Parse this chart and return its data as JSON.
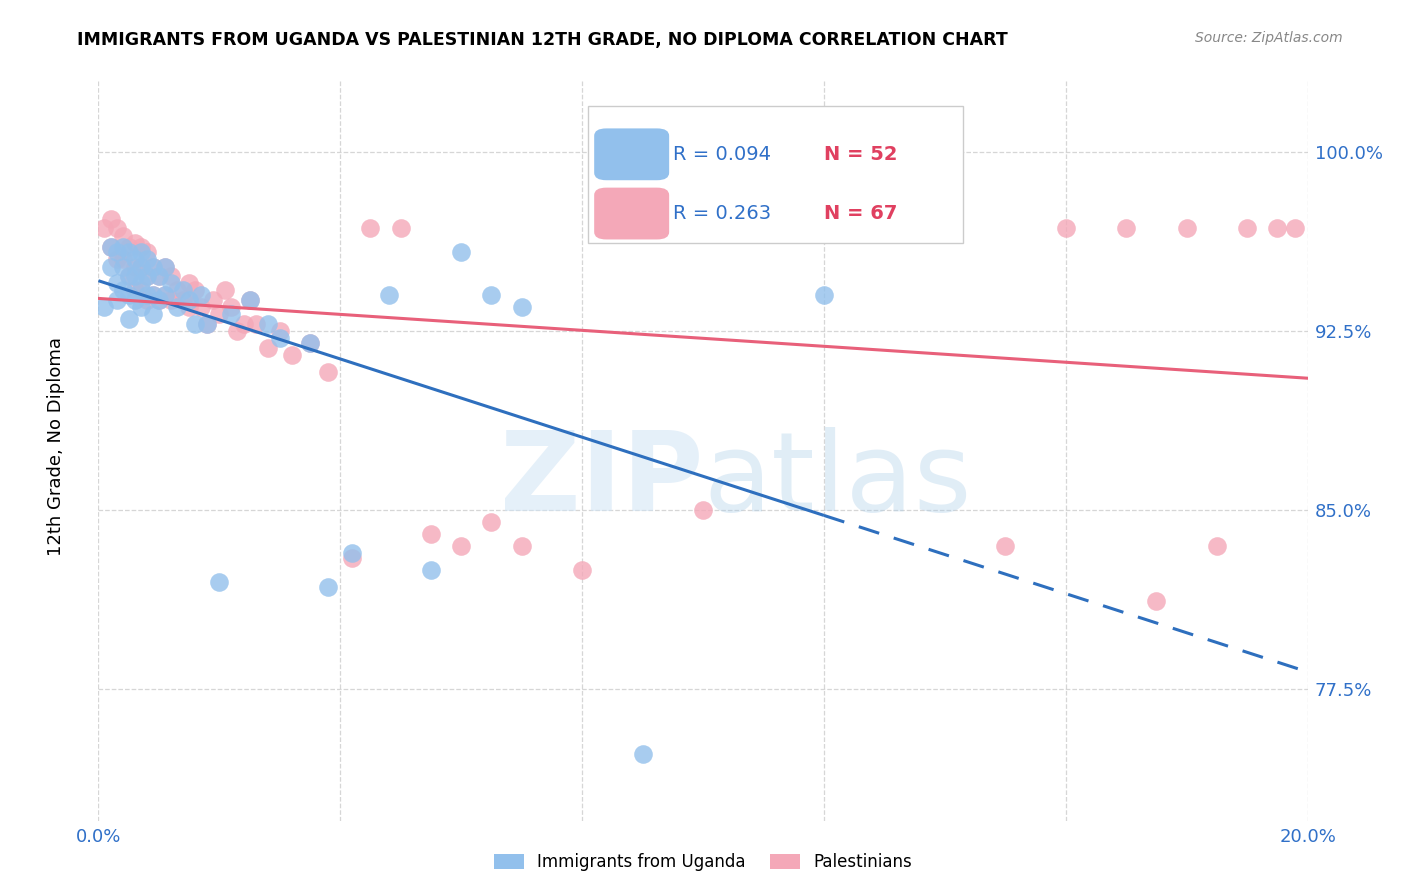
{
  "title": "IMMIGRANTS FROM UGANDA VS PALESTINIAN 12TH GRADE, NO DIPLOMA CORRELATION CHART",
  "source": "Source: ZipAtlas.com",
  "ylabel": "12th Grade, No Diploma",
  "yticks": [
    "77.5%",
    "85.0%",
    "92.5%",
    "100.0%"
  ],
  "ytick_vals": [
    0.775,
    0.85,
    0.925,
    1.0
  ],
  "xlim": [
    0.0,
    0.2
  ],
  "ylim": [
    0.72,
    1.03
  ],
  "legend1_R": "0.094",
  "legend1_N": "52",
  "legend2_R": "0.263",
  "legend2_N": "67",
  "color_uganda": "#92C0EC",
  "color_palestinian": "#F4A8B8",
  "uganda_x": [
    0.001,
    0.002,
    0.002,
    0.003,
    0.003,
    0.003,
    0.004,
    0.004,
    0.004,
    0.005,
    0.005,
    0.005,
    0.005,
    0.006,
    0.006,
    0.006,
    0.007,
    0.007,
    0.007,
    0.007,
    0.008,
    0.008,
    0.008,
    0.009,
    0.009,
    0.009,
    0.01,
    0.01,
    0.011,
    0.011,
    0.012,
    0.013,
    0.014,
    0.015,
    0.016,
    0.017,
    0.018,
    0.02,
    0.022,
    0.025,
    0.028,
    0.03,
    0.035,
    0.038,
    0.042,
    0.048,
    0.055,
    0.06,
    0.065,
    0.07,
    0.09,
    0.12
  ],
  "uganda_y": [
    0.935,
    0.96,
    0.952,
    0.958,
    0.945,
    0.938,
    0.96,
    0.952,
    0.942,
    0.958,
    0.948,
    0.94,
    0.93,
    0.955,
    0.948,
    0.938,
    0.958,
    0.952,
    0.945,
    0.935,
    0.955,
    0.948,
    0.94,
    0.952,
    0.94,
    0.932,
    0.948,
    0.938,
    0.952,
    0.94,
    0.945,
    0.935,
    0.942,
    0.938,
    0.928,
    0.94,
    0.928,
    0.82,
    0.932,
    0.938,
    0.928,
    0.922,
    0.92,
    0.818,
    0.832,
    0.94,
    0.825,
    0.958,
    0.94,
    0.935,
    0.748,
    0.94
  ],
  "palestinian_x": [
    0.001,
    0.002,
    0.002,
    0.003,
    0.003,
    0.004,
    0.004,
    0.005,
    0.005,
    0.006,
    0.006,
    0.006,
    0.007,
    0.007,
    0.007,
    0.008,
    0.008,
    0.008,
    0.009,
    0.009,
    0.01,
    0.01,
    0.011,
    0.011,
    0.012,
    0.012,
    0.013,
    0.014,
    0.015,
    0.015,
    0.016,
    0.017,
    0.018,
    0.019,
    0.02,
    0.021,
    0.022,
    0.023,
    0.024,
    0.025,
    0.026,
    0.028,
    0.03,
    0.032,
    0.035,
    0.038,
    0.042,
    0.045,
    0.05,
    0.055,
    0.06,
    0.065,
    0.07,
    0.08,
    0.09,
    0.1,
    0.11,
    0.13,
    0.15,
    0.16,
    0.17,
    0.175,
    0.18,
    0.185,
    0.19,
    0.195,
    0.198
  ],
  "palestinian_y": [
    0.968,
    0.972,
    0.96,
    0.968,
    0.955,
    0.965,
    0.955,
    0.96,
    0.948,
    0.962,
    0.952,
    0.942,
    0.96,
    0.952,
    0.942,
    0.958,
    0.948,
    0.938,
    0.952,
    0.94,
    0.948,
    0.938,
    0.952,
    0.94,
    0.948,
    0.938,
    0.942,
    0.938,
    0.945,
    0.935,
    0.942,
    0.935,
    0.928,
    0.938,
    0.932,
    0.942,
    0.935,
    0.925,
    0.928,
    0.938,
    0.928,
    0.918,
    0.925,
    0.915,
    0.92,
    0.908,
    0.83,
    0.968,
    0.968,
    0.84,
    0.835,
    0.845,
    0.835,
    0.825,
    0.968,
    0.85,
    0.968,
    0.968,
    0.835,
    0.968,
    0.968,
    0.812,
    0.968,
    0.835,
    0.968,
    0.968,
    0.968
  ]
}
